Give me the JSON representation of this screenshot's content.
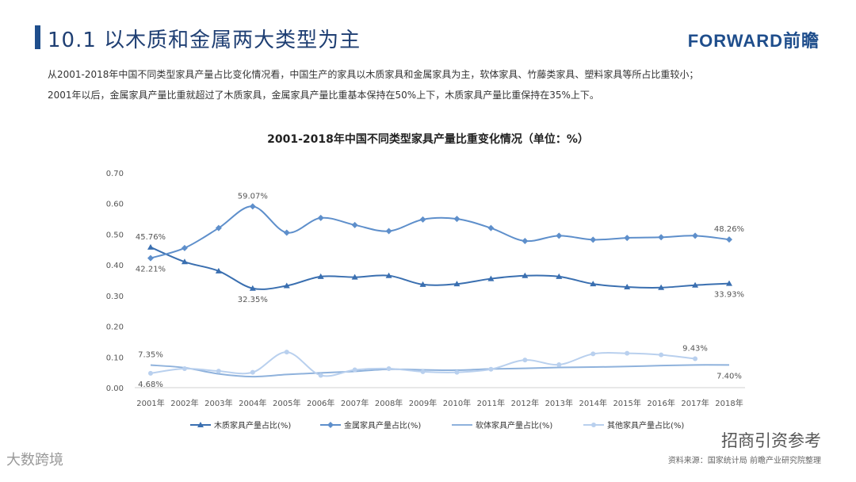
{
  "header": {
    "title": "10.1 以木质和金属两大类型为主",
    "logo": "FORWARD前瞻"
  },
  "intro": {
    "line1": "从2001-2018年中国不同类型家具产量占比变化情况看，中国生产的家具以木质家具和金属家具为主，软体家具、竹藤类家具、塑料家具等所占比重较小；",
    "line2": "2001年以后，金属家具产量比重就超过了木质家具，金属家具产量比重基本保持在50%上下，木质家具产量比重保持在35%上下。"
  },
  "chart_data": {
    "type": "line",
    "title": "2001-2018年中国不同类型家具产量比重变化情况（单位：%）",
    "categories": [
      "2001年",
      "2002年",
      "2003年",
      "2004年",
      "2005年",
      "2006年",
      "2007年",
      "2008年",
      "2009年",
      "2010年",
      "2011年",
      "2012年",
      "2013年",
      "2014年",
      "2015年",
      "2016年",
      "2017年",
      "2018年"
    ],
    "yticks": [
      "0.00",
      "0.10",
      "0.20",
      "0.30",
      "0.40",
      "0.50",
      "0.60",
      "0.70"
    ],
    "ylim": [
      0,
      0.7
    ],
    "series": [
      {
        "name": "木质家具产量占比(%)",
        "color": "#3a6fb0",
        "marker": "triangle",
        "values": [
          0.4576,
          0.41,
          0.38,
          0.3235,
          0.332,
          0.362,
          0.36,
          0.365,
          0.336,
          0.338,
          0.355,
          0.365,
          0.362,
          0.338,
          0.328,
          0.326,
          0.334,
          0.3393
        ]
      },
      {
        "name": "金属家具产量占比(%)",
        "color": "#5e8fcb",
        "marker": "diamond",
        "values": [
          0.4221,
          0.455,
          0.52,
          0.5907,
          0.505,
          0.553,
          0.53,
          0.51,
          0.548,
          0.55,
          0.52,
          0.478,
          0.495,
          0.482,
          0.488,
          0.49,
          0.495,
          0.4826
        ]
      },
      {
        "name": "软体家具产量占比(%)",
        "color": "#8fb2dc",
        "marker": "none",
        "values": [
          0.0735,
          0.065,
          0.045,
          0.036,
          0.043,
          0.048,
          0.053,
          0.06,
          0.058,
          0.057,
          0.061,
          0.063,
          0.066,
          0.067,
          0.069,
          0.072,
          0.074,
          0.074
        ]
      },
      {
        "name": "其他家具产量占比(%)",
        "color": "#b9d0ee",
        "marker": "circle",
        "values": [
          0.0468,
          0.062,
          0.054,
          0.05,
          0.116,
          0.04,
          0.058,
          0.062,
          0.052,
          0.05,
          0.06,
          0.09,
          0.075,
          0.11,
          0.112,
          0.107,
          0.0943,
          null
        ]
      }
    ],
    "data_labels": [
      {
        "text": "45.76%",
        "series": 0,
        "index": 0,
        "pos": "above"
      },
      {
        "text": "42.21%",
        "series": 1,
        "index": 0,
        "pos": "below"
      },
      {
        "text": "59.07%",
        "series": 1,
        "index": 3,
        "pos": "above"
      },
      {
        "text": "32.35%",
        "series": 0,
        "index": 3,
        "pos": "below"
      },
      {
        "text": "48.26%",
        "series": 1,
        "index": 17,
        "pos": "above"
      },
      {
        "text": "33.93%",
        "series": 0,
        "index": 17,
        "pos": "below"
      },
      {
        "text": "7.35%",
        "series": 2,
        "index": 0,
        "pos": "above"
      },
      {
        "text": "4.68%",
        "series": 3,
        "index": 0,
        "pos": "below"
      },
      {
        "text": "9.43%",
        "series": 3,
        "index": 16,
        "pos": "above"
      },
      {
        "text": "7.40%",
        "series": 2,
        "index": 17,
        "pos": "below"
      }
    ]
  },
  "footer": {
    "wechat": "招商引资参考",
    "source": "资料来源：国家统计局  前瞻产业研究院整理",
    "watermark": "大数跨境"
  }
}
